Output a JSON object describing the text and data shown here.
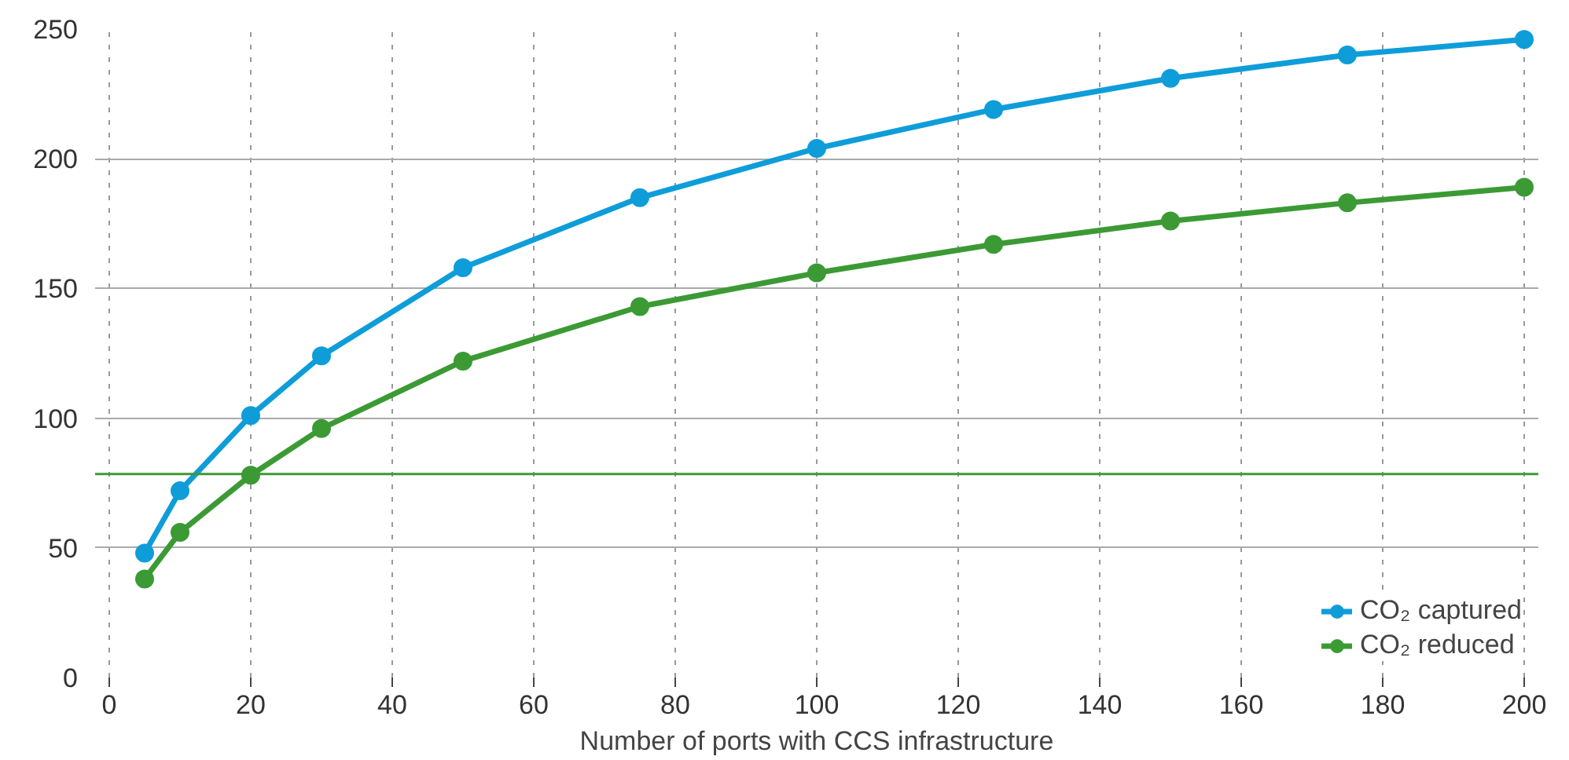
{
  "chart_data": {
    "type": "line",
    "xlabel": "Number of ports with CCS infrastructure",
    "x": [
      5,
      10,
      20,
      30,
      50,
      75,
      100,
      125,
      150,
      175,
      200
    ],
    "series": [
      {
        "name": "CO₂ captured",
        "color": "#0e9dd9",
        "values": [
          48,
          72,
          101,
          124,
          158,
          185,
          204,
          219,
          231,
          240,
          246
        ]
      },
      {
        "name": "CO₂ reduced",
        "color": "#3c9a35",
        "values": [
          38,
          56,
          78,
          96,
          122,
          143,
          156,
          167,
          176,
          183,
          189
        ]
      }
    ],
    "xlim": [
      -2,
      202
    ],
    "ylim": [
      0,
      250
    ],
    "xticks": [
      0,
      20,
      40,
      60,
      80,
      100,
      120,
      140,
      160,
      180,
      200
    ],
    "yticks": [
      0,
      50,
      100,
      150,
      200,
      250
    ],
    "ref_lines": [
      {
        "axis": "y",
        "value": 78.5,
        "color": "#3c9a35"
      }
    ],
    "grid": true,
    "legend": "bottom right",
    "marker": "circle",
    "line_style": "solid"
  }
}
